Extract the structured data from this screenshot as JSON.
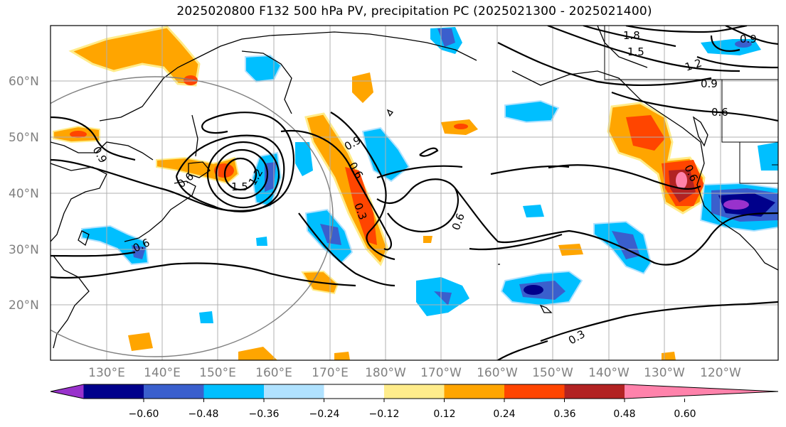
{
  "title": "2025020800 F132 500 hPa PV, precipitation PC (2025021300 - 2025021400)",
  "lat_labels": [
    "60°N",
    "50°N",
    "40°N",
    "30°N",
    "20°N"
  ],
  "lon_labels": [
    "130°E",
    "140°E",
    "150°E",
    "160°E",
    "170°E",
    "180°W",
    "170°W",
    "160°W",
    "150°W",
    "140°W",
    "130°W",
    "120°W"
  ],
  "contour_labels": [
    "1.8",
    "1.5",
    "1.2",
    "0.9",
    "0.6",
    "0.9",
    "0.9",
    "0.6",
    "0.3",
    "1.5",
    "1.2",
    "0.6",
    "0.6",
    "0.6",
    "0.6",
    "0.3",
    "0.9"
  ],
  "colorbar": {
    "labels": [
      "−0.60",
      "−0.48",
      "−0.36",
      "−0.24",
      "−0.12",
      "0.12",
      "0.24",
      "0.36",
      "0.48",
      "0.60"
    ],
    "colors": [
      "#9932cc",
      "#00008b",
      "#3a5fcd",
      "#00bfff",
      "#b0e2ff",
      "#ffffff",
      "#ffec8b",
      "#ffa500",
      "#ff4500",
      "#b22222",
      "#ff82ab"
    ]
  }
}
